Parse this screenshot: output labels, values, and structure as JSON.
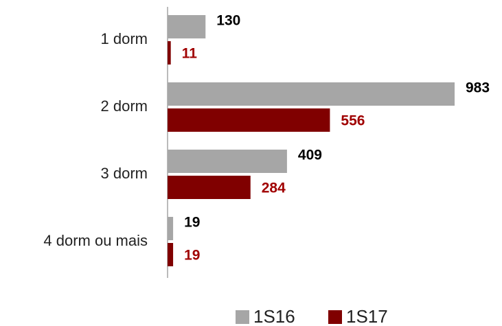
{
  "chart_data": {
    "type": "hbar",
    "categories": [
      "1 dorm",
      "2 dorm",
      "3 dorm",
      "4 dorm ou mais"
    ],
    "series": [
      {
        "name": "1S16",
        "color": "#a6a6a6",
        "label_color": "#000000",
        "values": [
          130,
          983,
          409,
          19
        ]
      },
      {
        "name": "1S17",
        "color": "#800000",
        "label_color": "#a00000",
        "values": [
          11,
          556,
          284,
          19
        ]
      }
    ],
    "legend": "bottom"
  }
}
